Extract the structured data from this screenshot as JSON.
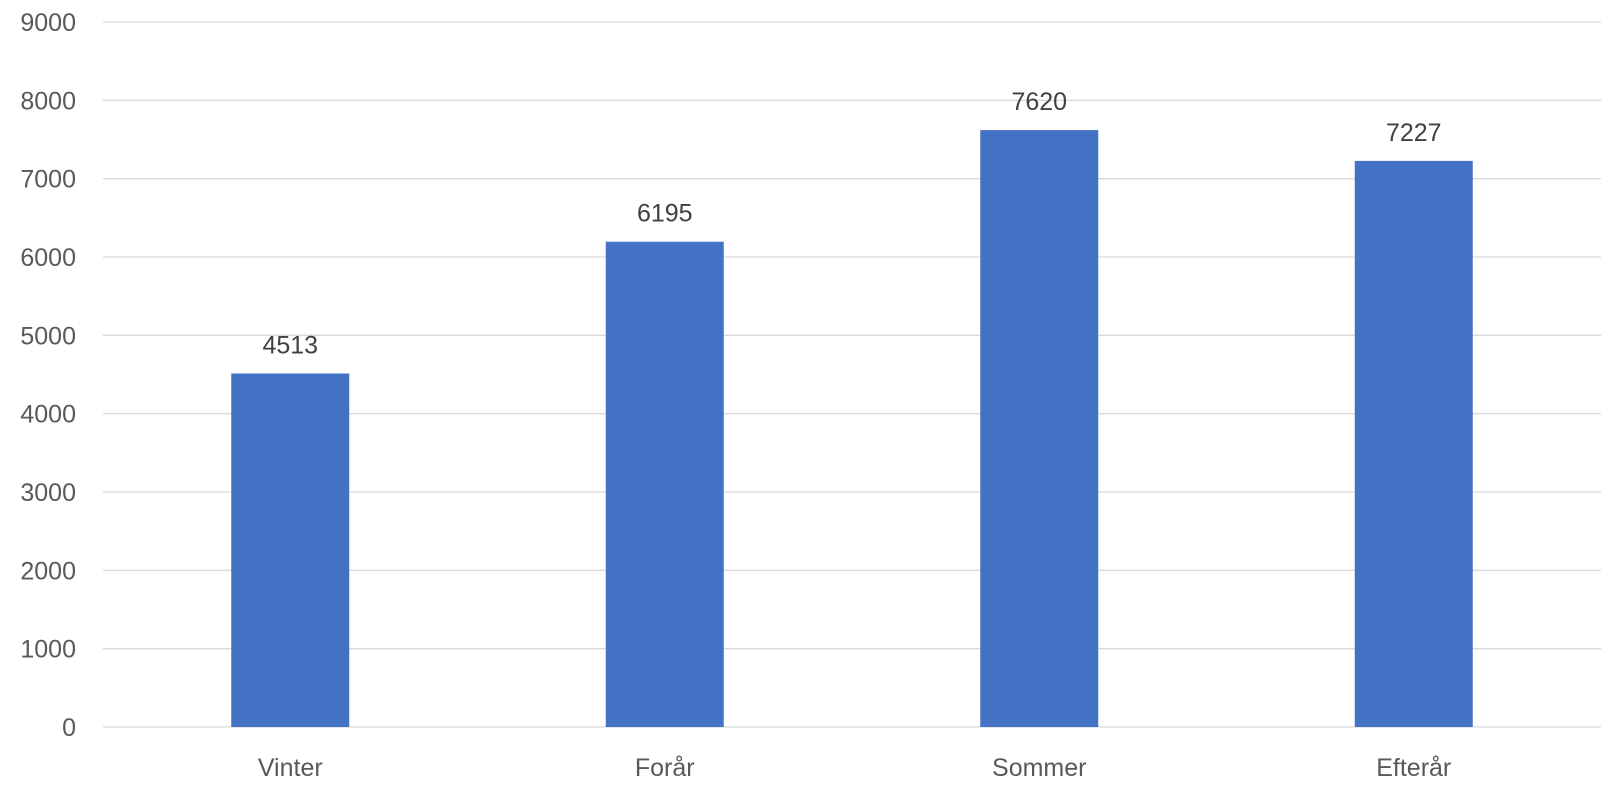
{
  "chart_data": {
    "type": "bar",
    "categories": [
      "Vinter",
      "Forår",
      "Sommer",
      "Efterår"
    ],
    "values": [
      4513,
      6195,
      7620,
      7227
    ],
    "data_labels": [
      "4513",
      "6195",
      "7620",
      "7227"
    ],
    "title": "",
    "xlabel": "",
    "ylabel": "",
    "ylim": [
      0,
      9000
    ],
    "yticks": [
      0,
      1000,
      2000,
      3000,
      4000,
      5000,
      6000,
      7000,
      8000,
      9000
    ],
    "ytick_labels": [
      "0",
      "1000",
      "2000",
      "3000",
      "4000",
      "5000",
      "6000",
      "7000",
      "8000",
      "9000"
    ],
    "grid": true,
    "legend": "none",
    "bar_color": "#4472c4",
    "grid_color": "#d9d9d9"
  }
}
